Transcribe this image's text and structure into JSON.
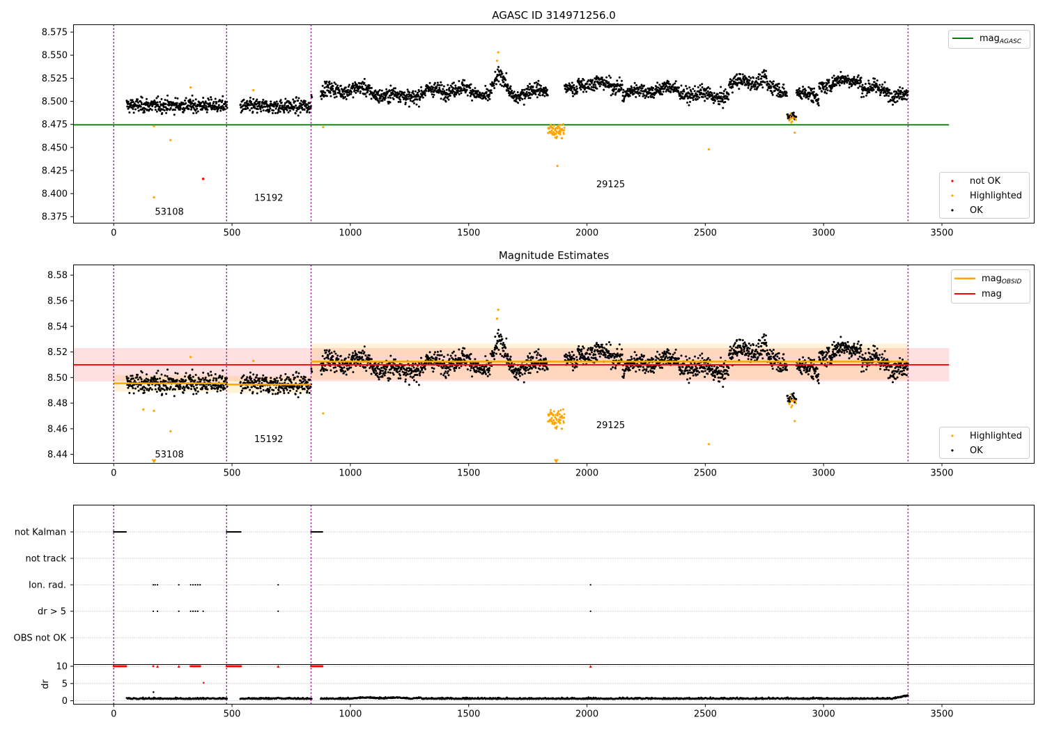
{
  "figure": {
    "colors": {
      "ok": "#000000",
      "highlighted": "#ffa500",
      "not_ok": "#ff0000",
      "agasc_line": "#008000",
      "mag_line": "#ff0000",
      "obsid_line": "#ffa500",
      "obs_boundary": "#800080",
      "grid": "#b0b0b0"
    }
  },
  "chart_data": [
    {
      "type": "scatter",
      "id": "agasc",
      "title": "AGASC ID 314971256.0",
      "xlim": [
        -170,
        3890
      ],
      "ylim": [
        8.368,
        8.583
      ],
      "xticks": [
        0,
        500,
        1000,
        1500,
        2000,
        2500,
        3000,
        3500
      ],
      "xtick_labels": [
        "0",
        "500",
        "1000",
        "1500",
        "2000",
        "2500",
        "3000",
        "3500"
      ],
      "yticks": [
        8.375,
        8.4,
        8.425,
        8.45,
        8.475,
        8.5,
        8.525,
        8.55,
        8.575
      ],
      "ytick_labels": [
        "8.375",
        "8.400",
        "8.425",
        "8.450",
        "8.475",
        "8.500",
        "8.525",
        "8.550",
        "8.575"
      ],
      "obs_boundaries": [
        0,
        477,
        834,
        3357
      ],
      "obs_labels": [
        {
          "text": "53108",
          "x": 235,
          "y": 8.377
        },
        {
          "text": "15192",
          "x": 655,
          "y": 8.392
        },
        {
          "text": "29125",
          "x": 2100,
          "y": 8.407
        }
      ],
      "reference_line": {
        "y": 8.4745,
        "x_range": [
          -170,
          3530
        ]
      },
      "legend_upper": {
        "entries": [
          {
            "label_main": "mag",
            "label_sub": "AGASC"
          }
        ]
      },
      "legend_lower": {
        "entries": [
          {
            "label": "not OK"
          },
          {
            "label": "Highlighted"
          },
          {
            "label": "OK"
          }
        ]
      },
      "highlighted_points": [
        [
          170,
          8.473
        ],
        [
          240,
          8.458
        ],
        [
          325,
          8.515
        ],
        [
          170,
          8.396
        ],
        [
          590,
          8.512
        ],
        [
          885,
          8.472
        ],
        [
          1625,
          8.553
        ],
        [
          1620,
          8.544
        ],
        [
          1875,
          8.43
        ],
        [
          2515,
          8.448
        ],
        [
          2878,
          8.466
        ],
        [
          2860,
          8.481
        ]
      ],
      "not_ok_points": [
        [
          378,
          8.416
        ]
      ]
    },
    {
      "type": "scatter",
      "id": "magnitude",
      "title": "Magnitude Estimates",
      "xlim": [
        -170,
        3890
      ],
      "ylim": [
        8.433,
        8.588
      ],
      "xticks": [
        0,
        500,
        1000,
        1500,
        2000,
        2500,
        3000,
        3500
      ],
      "xtick_labels": [
        "0",
        "500",
        "1000",
        "1500",
        "2000",
        "2500",
        "3000",
        "3500"
      ],
      "yticks": [
        8.44,
        8.46,
        8.48,
        8.5,
        8.52,
        8.54,
        8.56,
        8.58
      ],
      "ytick_labels": [
        "8.44",
        "8.46",
        "8.48",
        "8.50",
        "8.52",
        "8.54",
        "8.56",
        "8.58"
      ],
      "obs_boundaries": [
        0,
        477,
        834,
        3357
      ],
      "obs_labels": [
        {
          "text": "53108",
          "x": 235,
          "y": 8.4375
        },
        {
          "text": "15192",
          "x": 655,
          "y": 8.4495
        },
        {
          "text": "29125",
          "x": 2100,
          "y": 8.4605
        }
      ],
      "mag": 8.51,
      "mag_band": [
        8.497,
        8.523
      ],
      "mag_x_range": [
        -170,
        3530
      ],
      "obsid_segments": [
        {
          "x0": 0,
          "x1": 477,
          "mag": 8.4955,
          "band": [
            8.489,
            8.502
          ]
        },
        {
          "x0": 477,
          "x1": 834,
          "mag": 8.4945,
          "band": [
            8.488,
            8.501
          ]
        },
        {
          "x0": 834,
          "x1": 3357,
          "mag": 8.5125,
          "band": [
            8.4985,
            8.5265
          ]
        }
      ],
      "legend_upper": {
        "entries": [
          {
            "label_main": "mag",
            "label_sub": "OBSID"
          },
          {
            "label": "mag"
          }
        ]
      },
      "legend_lower": {
        "entries": [
          {
            "label": "Highlighted"
          },
          {
            "label": "OK"
          }
        ]
      },
      "highlighted_points": [
        [
          125,
          8.475
        ],
        [
          170,
          8.474
        ],
        [
          240,
          8.458
        ],
        [
          325,
          8.516
        ],
        [
          590,
          8.513
        ],
        [
          885,
          8.472
        ],
        [
          1625,
          8.553
        ],
        [
          1620,
          8.546
        ],
        [
          2515,
          8.448
        ],
        [
          2878,
          8.466
        ]
      ],
      "offscale_markers": [
        [
          170,
          8.434
        ],
        [
          1870,
          8.434
        ]
      ]
    },
    {
      "type": "scatter",
      "id": "flags",
      "title": "",
      "xlim": [
        -170,
        3890
      ],
      "categories": [
        "not Kalman",
        "not track",
        "Ion. rad.",
        "dr > 5",
        "OBS not OK"
      ],
      "obs_boundaries": [
        0,
        477,
        834,
        3357
      ],
      "flag_points": {
        "not Kalman": [
          [
            0,
            55
          ],
          [
            477,
            540
          ],
          [
            834,
            885
          ]
        ],
        "not track": [],
        "Ion. rad.": [
          [
            167,
            0
          ],
          [
            175,
            0
          ],
          [
            185,
            0
          ],
          [
            275,
            0
          ],
          [
            325,
            0
          ],
          [
            335,
            0
          ],
          [
            345,
            0
          ],
          [
            355,
            0
          ],
          [
            365,
            0
          ],
          [
            695,
            0
          ],
          [
            2015,
            0
          ]
        ],
        "dr > 5": [
          [
            167,
            0
          ],
          [
            185,
            0
          ],
          [
            275,
            0
          ],
          [
            325,
            0
          ],
          [
            335,
            0
          ],
          [
            345,
            0
          ],
          [
            355,
            0
          ],
          [
            378,
            0
          ],
          [
            695,
            0
          ],
          [
            2015,
            0
          ]
        ],
        "OBS not OK": []
      }
    },
    {
      "type": "scatter",
      "id": "dr",
      "title": "",
      "xlim": [
        -170,
        3890
      ],
      "ylim": [
        -1,
        10.5
      ],
      "ylabel": "dr",
      "yticks": [
        0,
        5,
        10
      ],
      "ytick_labels": [
        "0",
        "5",
        "10"
      ],
      "xticks": [
        0,
        500,
        1000,
        1500,
        2000,
        2500,
        3000,
        3500
      ],
      "xtick_labels": [
        "0",
        "500",
        "1000",
        "1500",
        "2000",
        "2500",
        "3000",
        "3500"
      ],
      "obs_boundaries": [
        0,
        477,
        834,
        3357
      ],
      "capped_value": 10,
      "capped_points_x": [
        [
          0,
          55
        ],
        [
          477,
          540
        ],
        [
          834,
          885
        ],
        [
          167,
          170
        ],
        [
          185,
          185
        ],
        [
          275,
          275
        ],
        [
          325,
          365
        ],
        [
          695,
          695
        ],
        [
          2015,
          2015
        ]
      ],
      "outliers": [
        {
          "x": 168,
          "y": 2.5,
          "color": "ok"
        },
        {
          "x": 380,
          "y": 5.2,
          "color": "not_ok"
        }
      ]
    }
  ]
}
